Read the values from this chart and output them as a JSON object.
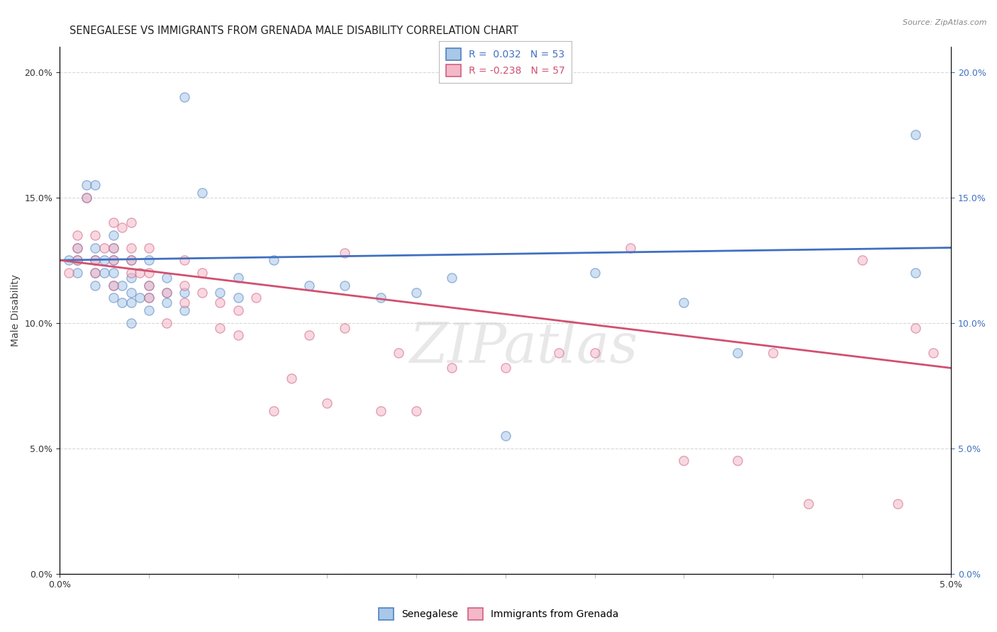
{
  "title": "SENEGALESE VS IMMIGRANTS FROM GRENADA MALE DISABILITY CORRELATION CHART",
  "source": "Source: ZipAtlas.com",
  "ylabel": "Male Disability",
  "watermark": "ZIPatlas",
  "blue_label": "Senegalese",
  "pink_label": "Immigrants from Grenada",
  "blue_R": "0.032",
  "blue_N": "53",
  "pink_R": "-0.238",
  "pink_N": "57",
  "xlim": [
    0.0,
    0.05
  ],
  "ylim": [
    0.0,
    0.21
  ],
  "xticks": [
    0.0,
    0.05
  ],
  "yticks": [
    0.0,
    0.05,
    0.1,
    0.15,
    0.2
  ],
  "blue_scatter_x": [
    0.0005,
    0.001,
    0.001,
    0.001,
    0.0015,
    0.0015,
    0.002,
    0.002,
    0.002,
    0.002,
    0.002,
    0.0025,
    0.0025,
    0.003,
    0.003,
    0.003,
    0.003,
    0.003,
    0.003,
    0.0035,
    0.0035,
    0.004,
    0.004,
    0.004,
    0.004,
    0.004,
    0.0045,
    0.005,
    0.005,
    0.005,
    0.005,
    0.006,
    0.006,
    0.006,
    0.007,
    0.007,
    0.007,
    0.008,
    0.009,
    0.01,
    0.01,
    0.012,
    0.014,
    0.016,
    0.018,
    0.02,
    0.022,
    0.025,
    0.03,
    0.035,
    0.038,
    0.048,
    0.048
  ],
  "blue_scatter_y": [
    0.125,
    0.12,
    0.125,
    0.13,
    0.15,
    0.155,
    0.115,
    0.12,
    0.125,
    0.13,
    0.155,
    0.12,
    0.125,
    0.11,
    0.115,
    0.12,
    0.125,
    0.13,
    0.135,
    0.108,
    0.115,
    0.1,
    0.108,
    0.112,
    0.118,
    0.125,
    0.11,
    0.105,
    0.11,
    0.115,
    0.125,
    0.108,
    0.112,
    0.118,
    0.105,
    0.112,
    0.19,
    0.152,
    0.112,
    0.11,
    0.118,
    0.125,
    0.115,
    0.115,
    0.11,
    0.112,
    0.118,
    0.055,
    0.12,
    0.108,
    0.088,
    0.175,
    0.12
  ],
  "pink_scatter_x": [
    0.0005,
    0.001,
    0.001,
    0.001,
    0.0015,
    0.002,
    0.002,
    0.002,
    0.0025,
    0.003,
    0.003,
    0.003,
    0.003,
    0.0035,
    0.004,
    0.004,
    0.004,
    0.004,
    0.0045,
    0.005,
    0.005,
    0.005,
    0.005,
    0.006,
    0.006,
    0.007,
    0.007,
    0.007,
    0.008,
    0.008,
    0.009,
    0.009,
    0.01,
    0.01,
    0.011,
    0.012,
    0.013,
    0.014,
    0.015,
    0.016,
    0.016,
    0.018,
    0.019,
    0.02,
    0.022,
    0.025,
    0.028,
    0.03,
    0.032,
    0.035,
    0.038,
    0.04,
    0.042,
    0.045,
    0.047,
    0.048,
    0.049
  ],
  "pink_scatter_y": [
    0.12,
    0.125,
    0.13,
    0.135,
    0.15,
    0.12,
    0.125,
    0.135,
    0.13,
    0.125,
    0.13,
    0.14,
    0.115,
    0.138,
    0.12,
    0.125,
    0.13,
    0.14,
    0.12,
    0.11,
    0.115,
    0.12,
    0.13,
    0.1,
    0.112,
    0.108,
    0.115,
    0.125,
    0.112,
    0.12,
    0.098,
    0.108,
    0.095,
    0.105,
    0.11,
    0.065,
    0.078,
    0.095,
    0.068,
    0.098,
    0.128,
    0.065,
    0.088,
    0.065,
    0.082,
    0.082,
    0.088,
    0.088,
    0.13,
    0.045,
    0.045,
    0.088,
    0.028,
    0.125,
    0.028,
    0.098,
    0.088
  ],
  "blue_color": "#a8c8e8",
  "pink_color": "#f4b8c8",
  "blue_edge_color": "#5080c0",
  "pink_edge_color": "#d06080",
  "blue_line_color": "#4070c0",
  "pink_line_color": "#d05070",
  "bg_color": "#ffffff",
  "grid_color": "#d8d8d8",
  "marker_size": 90,
  "marker_alpha": 0.55,
  "title_fontsize": 10.5,
  "axis_label_fontsize": 10,
  "tick_fontsize": 9,
  "legend_fontsize": 10,
  "right_tick_color": "#4070c0"
}
